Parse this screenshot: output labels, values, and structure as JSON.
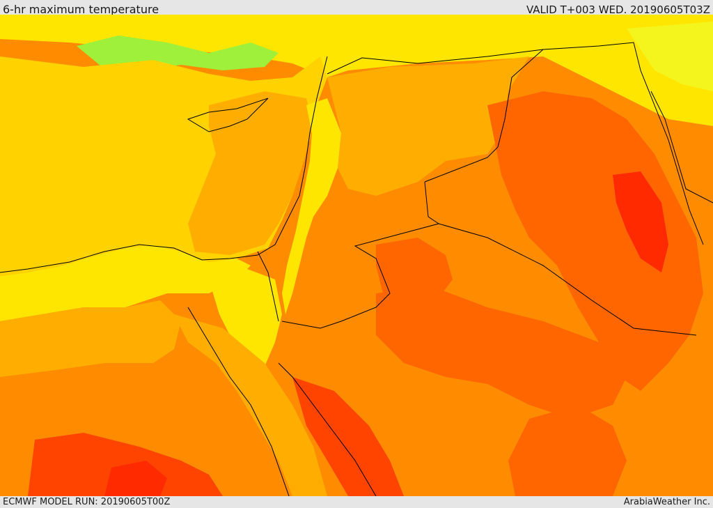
{
  "header": {
    "title": "6-hr maximum temperature",
    "valid": "VALID T+003 WED. 20190605T03Z"
  },
  "footer": {
    "model_run": "ECMWF MODEL RUN: 20190605T00Z",
    "credit": "ArabiaWeather Inc."
  },
  "colors": {
    "cool_green": "#9ef03a",
    "light_yellow": "#f5f51e",
    "yellow": "#ffe600",
    "gold": "#ffd200",
    "amber": "#ffae00",
    "orange": "#ff8c00",
    "dark_orange": "#ff6600",
    "red_orange": "#ff4400",
    "red": "#ff2a00",
    "border_line": "#000000"
  },
  "map": {
    "projection": "regional map — Eastern Mediterranean, Levant, Iraq, Sinai, Arabian Peninsula",
    "field": "6-hr maximum temperature (filled contours, no legend shown)"
  }
}
